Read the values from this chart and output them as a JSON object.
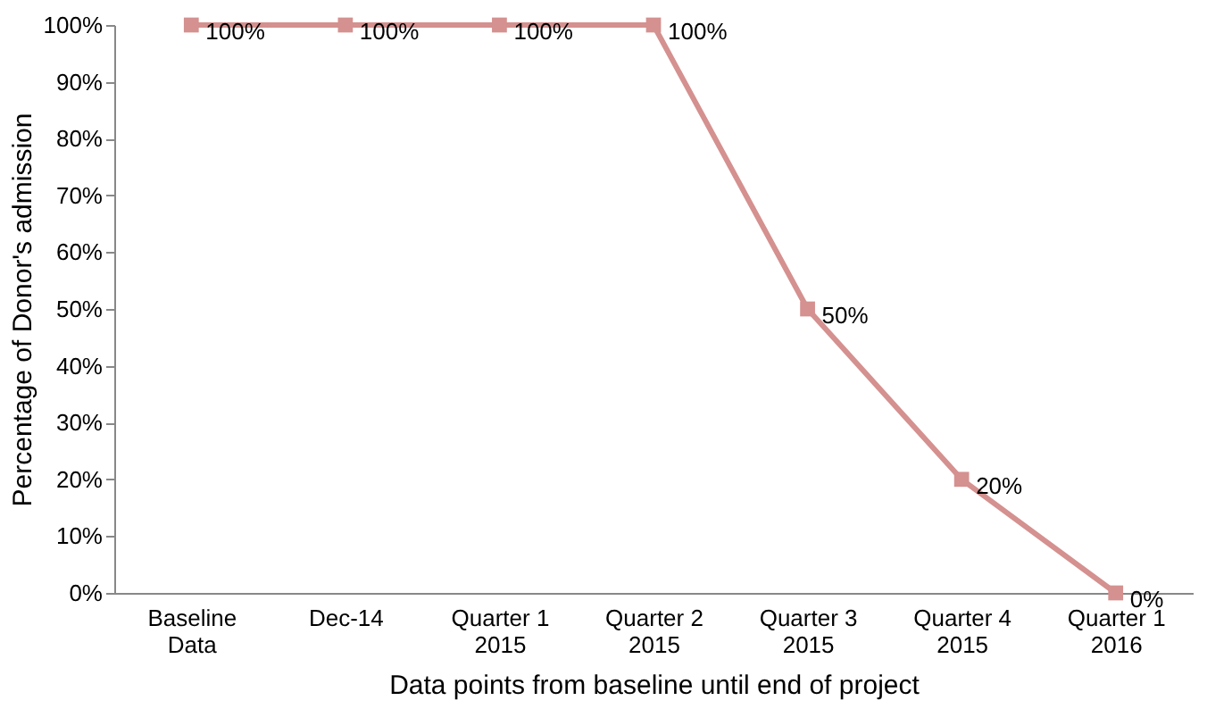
{
  "chart_data": {
    "type": "line",
    "xlabel": "Data points from baseline until end of project",
    "ylabel": "Percentage of Donor's admission",
    "categories": [
      "Baseline Data",
      "Dec-14",
      "Quarter 1 2015",
      "Quarter 2 2015",
      "Quarter 3 2015",
      "Quarter 4 2015",
      "Quarter 1 2016"
    ],
    "series": [
      {
        "color": "#d4918f",
        "values": [
          100,
          100,
          100,
          100,
          50,
          20,
          0
        ],
        "value_labels": [
          "100%",
          "100%",
          "100%",
          "100%",
          "50%",
          "20%",
          "0%"
        ]
      }
    ],
    "ylim": [
      0,
      100
    ],
    "yticks": [
      {
        "value": 0,
        "label": "0%"
      },
      {
        "value": 10,
        "label": "10%"
      },
      {
        "value": 20,
        "label": "20%"
      },
      {
        "value": 30,
        "label": "30%"
      },
      {
        "value": 40,
        "label": "40%"
      },
      {
        "value": 50,
        "label": "50%"
      },
      {
        "value": 60,
        "label": "60%"
      },
      {
        "value": 70,
        "label": "70%"
      },
      {
        "value": 80,
        "label": "80%"
      },
      {
        "value": 90,
        "label": "90%"
      },
      {
        "value": 100,
        "label": "100%"
      }
    ],
    "marker": "square",
    "line_style": "solid",
    "grid": false
  }
}
